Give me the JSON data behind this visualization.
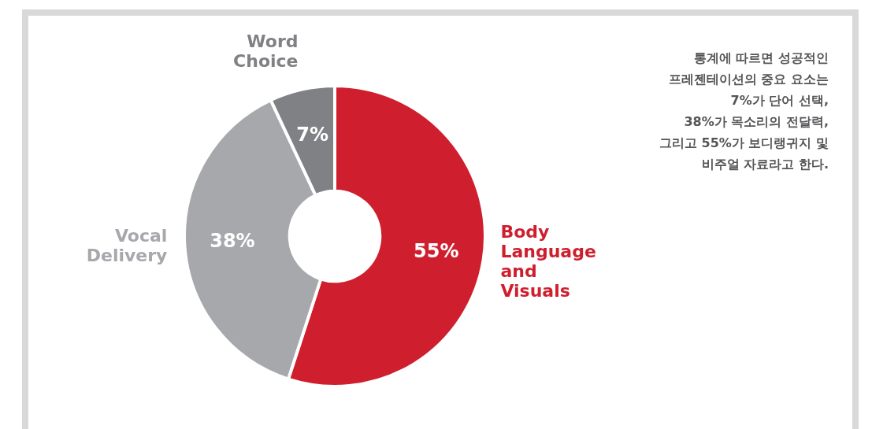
{
  "chart_data": {
    "type": "donut",
    "categories": [
      "Body Language and Visuals",
      "Vocal Delivery",
      "Word Choice"
    ],
    "values": [
      55,
      38,
      7
    ],
    "colors": [
      "#cf1f2e",
      "#a7a8ac",
      "#808185"
    ],
    "value_labels": [
      "55%",
      "38%",
      "7%"
    ],
    "annotations": [
      "통계에 따르면 성공적인\n프레젠테이션의 중요 요소는\n7%가 단어 선택,\n38%가 목소리의 전달력,\n그리고 55%가 보디랭귀지 및\n비주얼 자료라고 한다."
    ]
  }
}
